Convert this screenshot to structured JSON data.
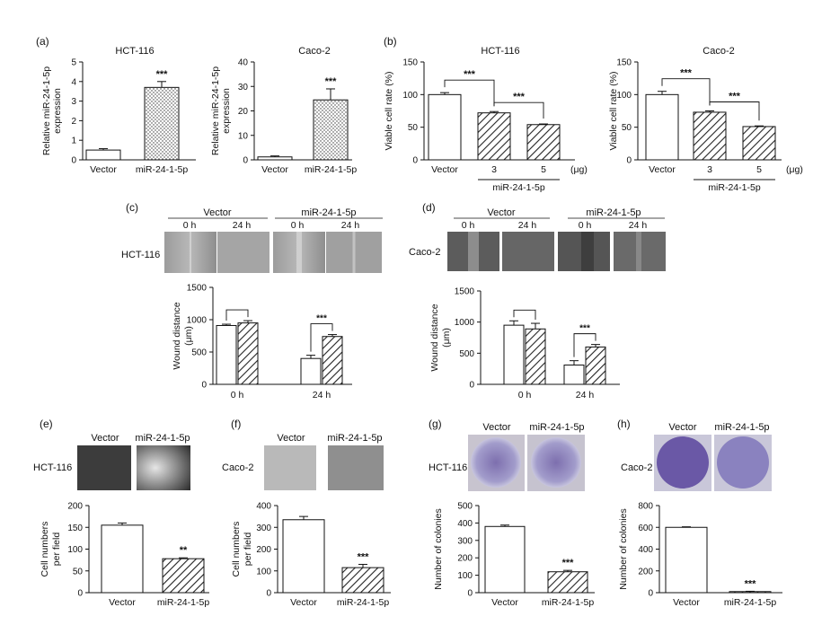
{
  "colors": {
    "axis": "#111111",
    "bar_fill_open": "#ffffff",
    "hatch": "#222222",
    "dots": "#333333"
  },
  "panels": {
    "a": {
      "letter": "(a)"
    },
    "b": {
      "letter": "(b)"
    },
    "c": {
      "letter": "(c)",
      "cell": "HCT-116",
      "groups": [
        "Vector",
        "miR-24-1-5p"
      ],
      "times": [
        "0 h",
        "24 h"
      ]
    },
    "d": {
      "letter": "(d)",
      "cell": "Caco-2",
      "groups": [
        "Vector",
        "miR-24-1-5p"
      ],
      "times": [
        "0 h",
        "24 h"
      ]
    },
    "e": {
      "letter": "(e)",
      "cell": "HCT-116",
      "groups": [
        "Vector",
        "miR-24-1-5p"
      ]
    },
    "f": {
      "letter": "(f)",
      "cell": "Caco-2",
      "groups": [
        "Vector",
        "miR-24-1-5p"
      ]
    },
    "g": {
      "letter": "(g)",
      "cell": "HCT-116",
      "groups": [
        "Vector",
        "miR-24-1-5p"
      ]
    },
    "h": {
      "letter": "(h)",
      "cell": "Caco-2",
      "groups": [
        "Vector",
        "miR-24-1-5p"
      ]
    }
  },
  "chart_data": [
    {
      "id": "a1",
      "type": "bar",
      "title": "HCT-116",
      "ylabel": [
        "Relative miR-24-1-5p",
        "expression"
      ],
      "categories": [
        "Vector",
        "miR-24-1-5p"
      ],
      "values": [
        0.5,
        3.7
      ],
      "errors": [
        0.07,
        0.3
      ],
      "fills": [
        "open",
        "dots"
      ],
      "ylim": [
        0,
        5
      ],
      "yticks": [
        0,
        1,
        2,
        3,
        4,
        5
      ],
      "significance": [
        {
          "bar": 1,
          "text": "***"
        }
      ]
    },
    {
      "id": "a2",
      "type": "bar",
      "title": "Caco-2",
      "ylabel": [
        "Relative miR-24-1-5p",
        "expression"
      ],
      "categories": [
        "Vector",
        "miR-24-1-5p"
      ],
      "values": [
        1.2,
        24.5
      ],
      "errors": [
        0.4,
        4.5
      ],
      "fills": [
        "open",
        "dots"
      ],
      "ylim": [
        0,
        40
      ],
      "yticks": [
        0,
        10,
        20,
        30,
        40
      ],
      "significance": [
        {
          "bar": 1,
          "text": "***"
        }
      ]
    },
    {
      "id": "b1",
      "type": "bar",
      "title": "HCT-116",
      "ylabel": [
        "Viable cell rate (%)"
      ],
      "categories": [
        "Vector",
        "3",
        "5"
      ],
      "values": [
        100,
        72,
        54
      ],
      "errors": [
        3,
        2,
        1
      ],
      "fills": [
        "open",
        "hatch",
        "hatch"
      ],
      "ylim": [
        0,
        150
      ],
      "yticks": [
        0,
        50,
        100,
        150
      ],
      "unit": "(μg)",
      "group_label": "miR-24-1-5p",
      "brackets": [
        {
          "from": 0,
          "to": 1,
          "text": "***"
        },
        {
          "from": 1,
          "to": 2,
          "text": "***"
        }
      ]
    },
    {
      "id": "b2",
      "type": "bar",
      "title": "Caco-2",
      "ylabel": [
        "Viable cell rate (%)"
      ],
      "categories": [
        "Vector",
        "3",
        "5"
      ],
      "values": [
        100,
        73,
        51
      ],
      "errors": [
        5,
        2,
        1
      ],
      "fills": [
        "open",
        "hatch",
        "hatch"
      ],
      "ylim": [
        0,
        150
      ],
      "yticks": [
        0,
        50,
        100,
        150
      ],
      "unit": "(μg)",
      "group_label": "miR-24-1-5p",
      "brackets": [
        {
          "from": 0,
          "to": 1,
          "text": "***"
        },
        {
          "from": 1,
          "to": 2,
          "text": "***"
        }
      ]
    },
    {
      "id": "c",
      "type": "bar",
      "title": "",
      "ylabel": [
        "Wound distance",
        "(μm)"
      ],
      "categories": [
        "0 h",
        "24 h"
      ],
      "series": [
        {
          "values": [
            910,
            400
          ],
          "errors": [
            20,
            50
          ],
          "fill": "open"
        },
        {
          "values": [
            950,
            740
          ],
          "errors": [
            35,
            30
          ],
          "fill": "hatch"
        }
      ],
      "ylim": [
        0,
        1500
      ],
      "yticks": [
        0,
        500,
        1000,
        1500
      ],
      "pairbrackets": [
        {
          "group": 0,
          "text": ""
        },
        {
          "group": 1,
          "text": "***"
        }
      ]
    },
    {
      "id": "d",
      "type": "bar",
      "title": "",
      "ylabel": [
        "Wound distance",
        "(μm)"
      ],
      "categories": [
        "0 h",
        "24 h"
      ],
      "series": [
        {
          "values": [
            950,
            310
          ],
          "errors": [
            70,
            70
          ],
          "fill": "open"
        },
        {
          "values": [
            890,
            600
          ],
          "errors": [
            90,
            40
          ],
          "fill": "hatch"
        }
      ],
      "ylim": [
        0,
        1500
      ],
      "yticks": [
        0,
        500,
        1000,
        1500
      ],
      "pairbrackets": [
        {
          "group": 0,
          "text": ""
        },
        {
          "group": 1,
          "text": "***"
        }
      ]
    },
    {
      "id": "e",
      "type": "bar",
      "title": "",
      "ylabel": [
        "Cell numbers",
        "per field"
      ],
      "categories": [
        "Vector",
        "miR-24-1-5p"
      ],
      "values": [
        155,
        78
      ],
      "errors": [
        5,
        2
      ],
      "fills": [
        "open",
        "hatch"
      ],
      "ylim": [
        0,
        200
      ],
      "yticks": [
        0,
        50,
        100,
        150,
        200
      ],
      "significance": [
        {
          "bar": 1,
          "text": "**"
        }
      ]
    },
    {
      "id": "f",
      "type": "bar",
      "title": "",
      "ylabel": [
        "Cell numbers",
        "per field"
      ],
      "categories": [
        "Vector",
        "miR-24-1-5p"
      ],
      "values": [
        335,
        115
      ],
      "errors": [
        15,
        15
      ],
      "fills": [
        "open",
        "hatch"
      ],
      "ylim": [
        0,
        400
      ],
      "yticks": [
        0,
        100,
        200,
        300,
        400
      ],
      "significance": [
        {
          "bar": 1,
          "text": "***"
        }
      ]
    },
    {
      "id": "g",
      "type": "bar",
      "title": "",
      "ylabel": [
        "Number of colonies"
      ],
      "categories": [
        "Vector",
        "miR-24-1-5p"
      ],
      "values": [
        380,
        120
      ],
      "errors": [
        8,
        8
      ],
      "fills": [
        "open",
        "hatch"
      ],
      "ylim": [
        0,
        500
      ],
      "yticks": [
        0,
        100,
        200,
        300,
        400,
        500
      ],
      "significance": [
        {
          "bar": 1,
          "text": "***"
        }
      ]
    },
    {
      "id": "h",
      "type": "bar",
      "title": "",
      "ylabel": [
        "Number of colonies"
      ],
      "categories": [
        "Vector",
        "miR-24-1-5p"
      ],
      "values": [
        600,
        10
      ],
      "errors": [
        5,
        3
      ],
      "fills": [
        "open",
        "hatch"
      ],
      "ylim": [
        0,
        800
      ],
      "yticks": [
        0,
        200,
        400,
        600,
        800
      ],
      "significance": [
        {
          "bar": 1,
          "text": "***"
        }
      ]
    }
  ]
}
